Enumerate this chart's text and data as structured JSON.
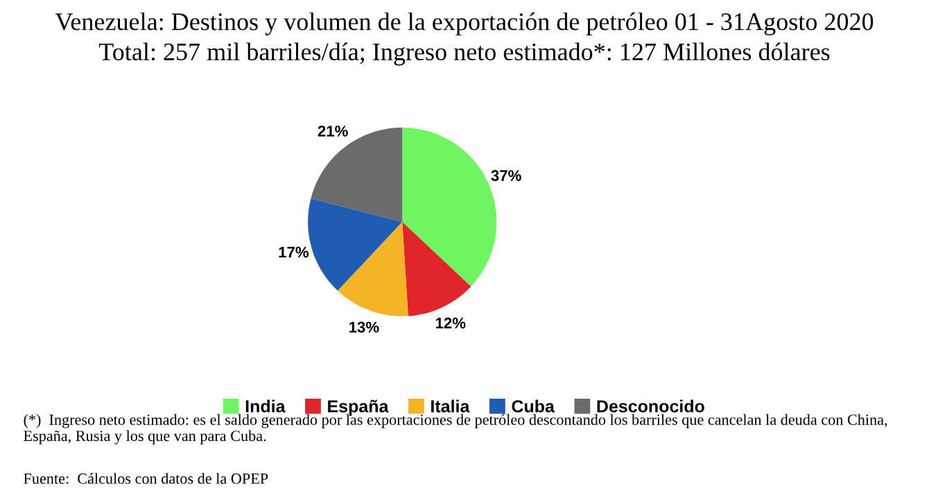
{
  "chart_data": {
    "type": "pie",
    "title": "Venezuela: Destinos y volumen de la exportación de petróleo 01 - 31Agosto 2020",
    "subtitle": "Total: 257 mil barriles/día; Ingreso neto estimado*: 127 Millones dólares",
    "categories": [
      "India",
      "España",
      "Italia",
      "Cuba",
      "Desconocido"
    ],
    "values": [
      37,
      12,
      13,
      17,
      21
    ],
    "value_labels": [
      "37%",
      "12%",
      "13%",
      "17%",
      "21%"
    ],
    "colors": [
      "#6ef561",
      "#e0262b",
      "#f3b526",
      "#1f5cb4",
      "#6b6b6b"
    ],
    "legend": "bottom",
    "annotations": [
      "(*)  Ingreso neto estimado: es el saldo generado por las exportaciones de petróleo descontando los barriles que cancelan la deuda con China, España, Rusia y los que van para Cuba.",
      "Fuente:  Cálculos con datos de la OPEP"
    ]
  }
}
